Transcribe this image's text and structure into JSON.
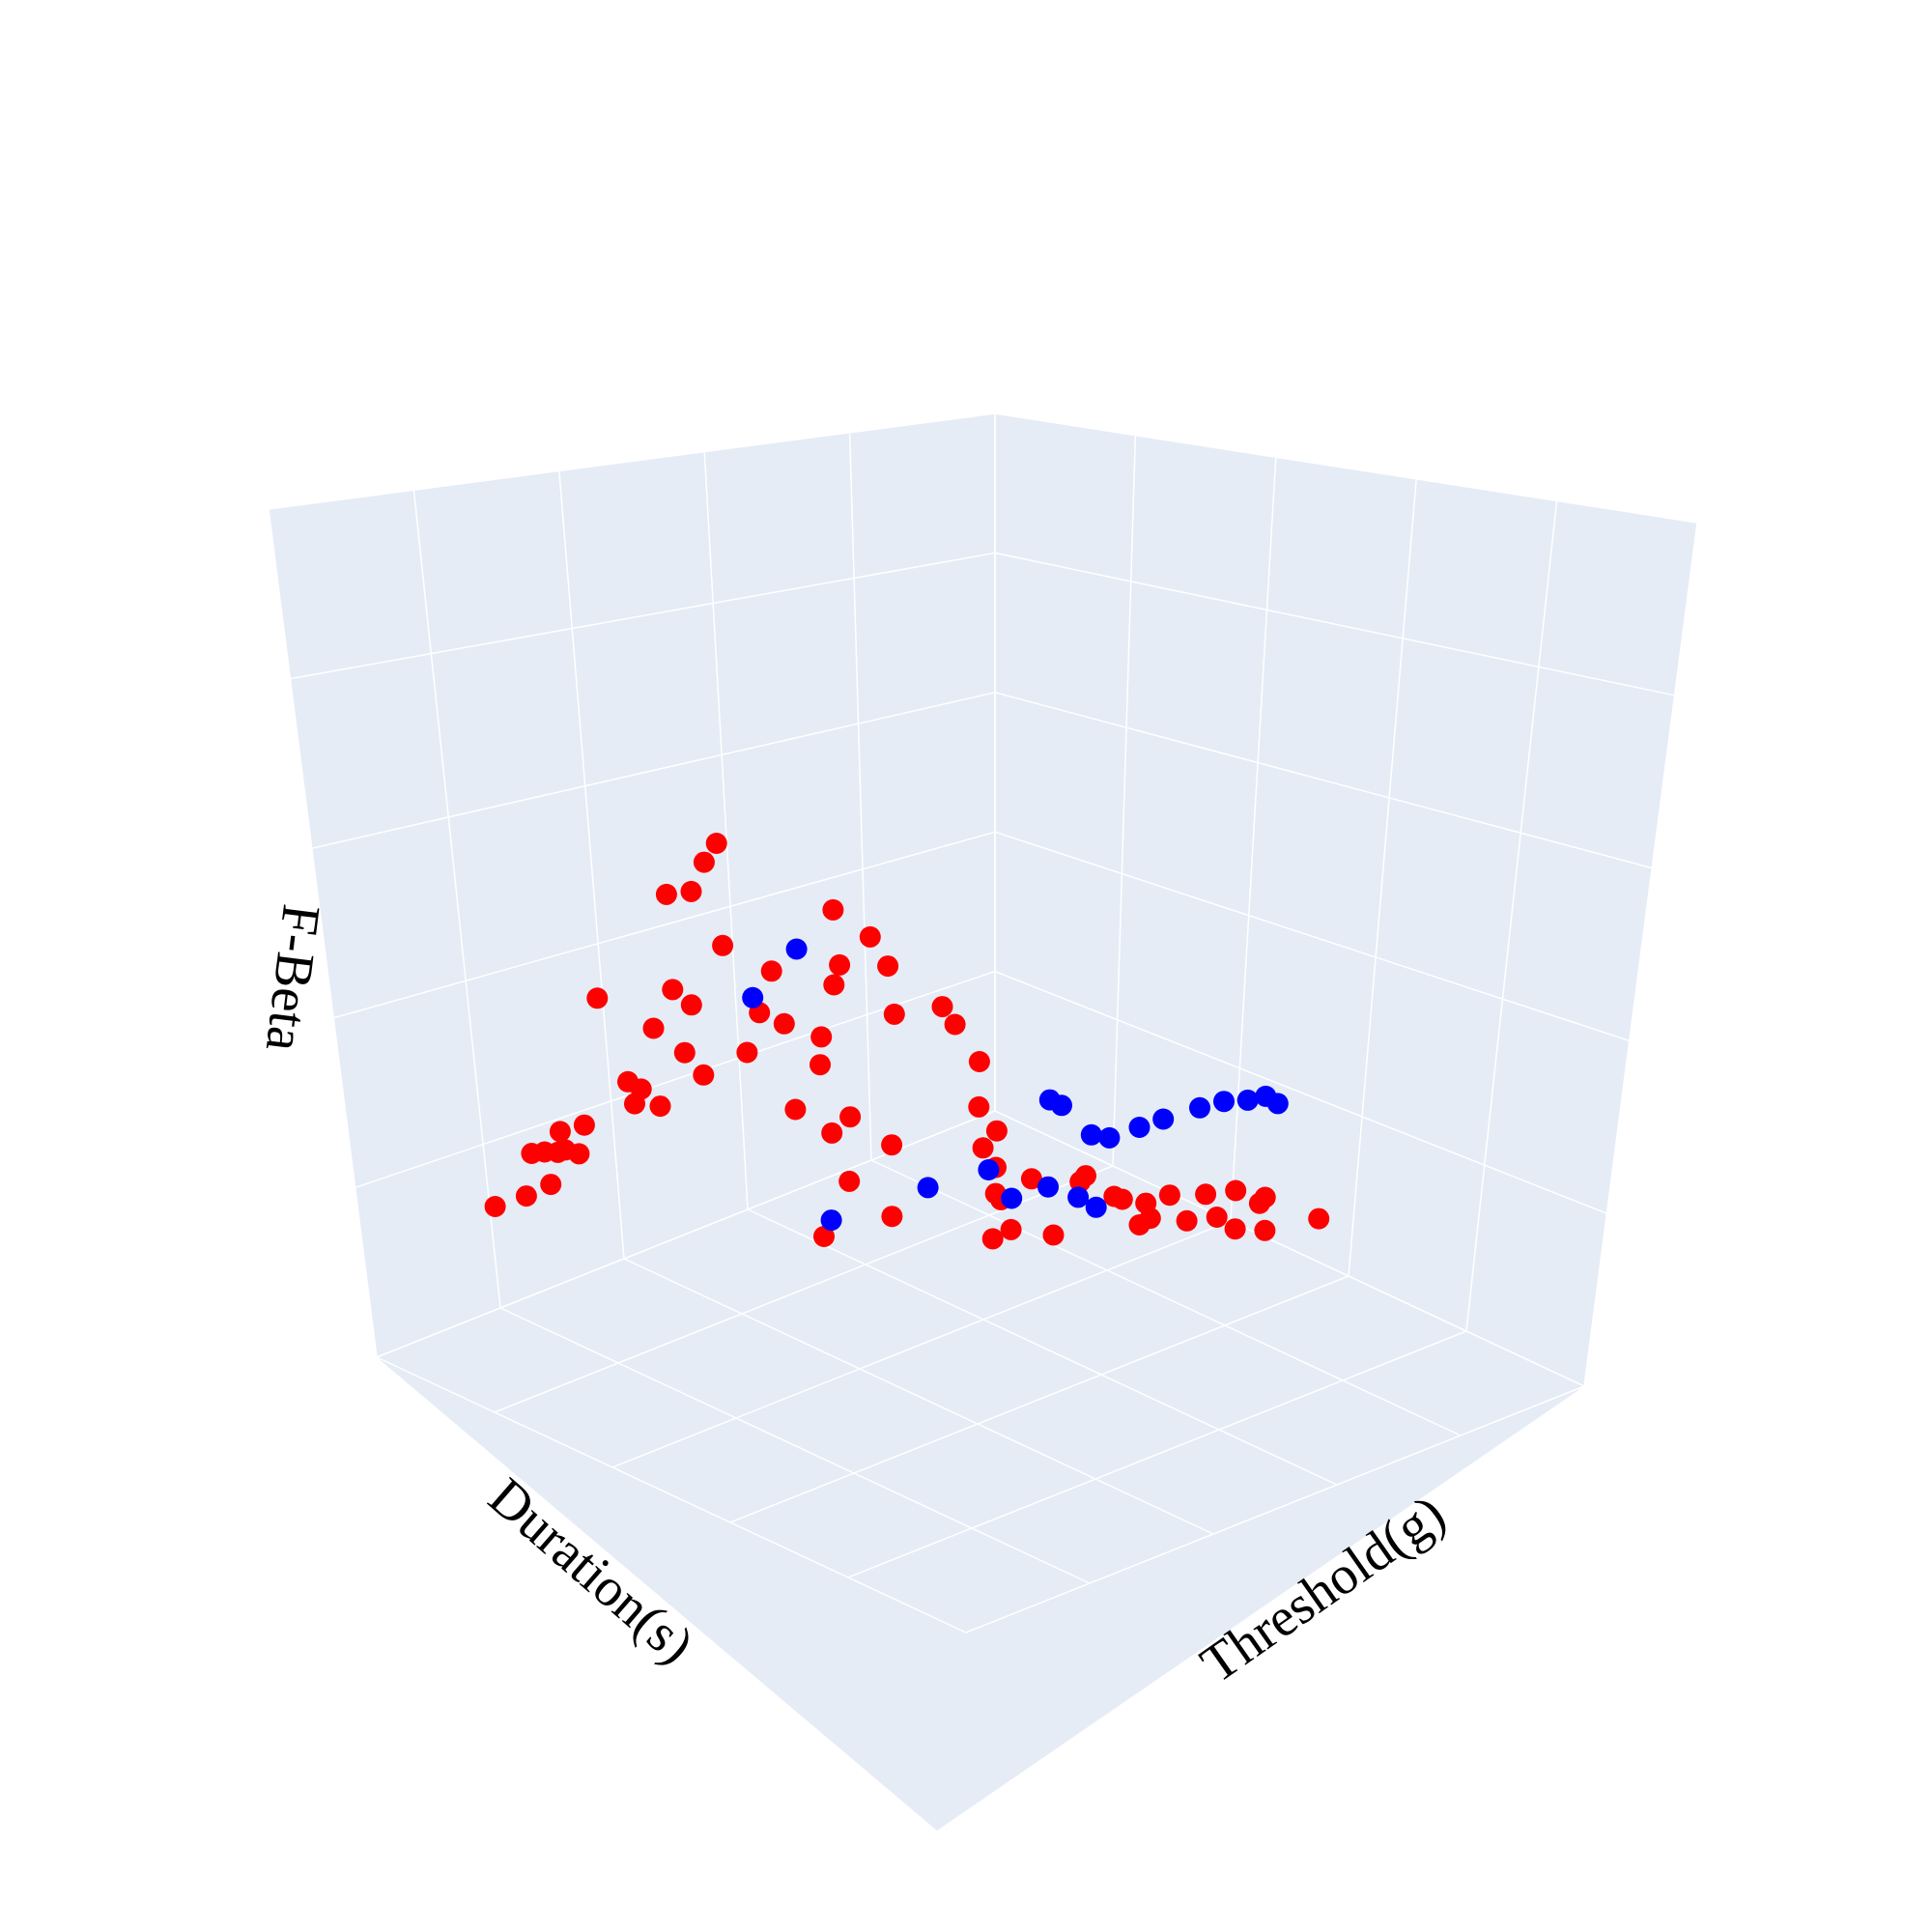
{
  "chart_data": {
    "type": "scatter",
    "title": "",
    "xlabel": "Duration(s)",
    "ylabel": "Threshold(g)",
    "zlabel": "F-Beta",
    "tick_labels_visible": false,
    "grid": true,
    "legend": "none",
    "colors": {
      "pane": "#e5ecf6",
      "grid": "#ffffff",
      "red": "#ff0000",
      "blue": "#0000ff",
      "background": "#ffffff"
    },
    "xlim": [
      0,
      1
    ],
    "ylim": [
      0,
      1
    ],
    "zlim": [
      0,
      1
    ],
    "series": [
      {
        "color": "#ff0000",
        "points": [
          [
            0.02,
            0.18,
            0.28
          ],
          [
            0.08,
            0.17,
            0.27
          ],
          [
            0.11,
            0.18,
            0.28
          ],
          [
            0.06,
            0.2,
            0.35
          ],
          [
            0.1,
            0.18,
            0.33
          ],
          [
            0.15,
            0.15,
            0.3
          ],
          [
            0.2,
            0.11,
            0.27
          ],
          [
            0.23,
            0.07,
            0.27
          ],
          [
            0.27,
            0.06,
            0.22
          ],
          [
            0.29,
            0.07,
            0.44
          ],
          [
            0.25,
            0.09,
            0.28
          ],
          [
            0.33,
            0.08,
            0.31
          ],
          [
            0.36,
            0.06,
            0.26
          ],
          [
            0.38,
            0.05,
            0.27
          ],
          [
            0.43,
            0.03,
            0.22
          ],
          [
            0.49,
            0.02,
            0.34
          ],
          [
            0.46,
            0.04,
            0.29
          ],
          [
            0.5,
            0.03,
            0.24
          ],
          [
            0.4,
            0.05,
            0.35
          ],
          [
            0.45,
            0.03,
            0.38
          ],
          [
            0.44,
            0.03,
            0.52
          ],
          [
            0.48,
            0.03,
            0.51
          ],
          [
            0.52,
            0.01,
            0.53
          ],
          [
            0.54,
            0.01,
            0.55
          ],
          [
            0.58,
            0.02,
            0.24
          ],
          [
            0.55,
            0.01,
            0.4
          ],
          [
            0.6,
            0.02,
            0.29
          ],
          [
            0.61,
            0.03,
            0.35
          ],
          [
            0.64,
            0.02,
            0.26
          ],
          [
            0.66,
            0.06,
            0.21
          ],
          [
            0.62,
            0.06,
            0.16
          ],
          [
            0.66,
            0.08,
            0.12
          ],
          [
            0.68,
            0.09,
            0.14
          ],
          [
            0.65,
            0.12,
            0.07
          ],
          [
            0.59,
            0.14,
            0.02
          ],
          [
            0.7,
            0.14,
            0.01
          ],
          [
            0.69,
            0.15,
            0.12
          ],
          [
            0.7,
            0.02,
            0.22
          ],
          [
            0.72,
            0.03,
            0.32
          ],
          [
            0.7,
            0.04,
            0.41
          ],
          [
            0.73,
            0.01,
            0.28
          ],
          [
            0.76,
            0.04,
            0.35
          ],
          [
            0.76,
            0.07,
            0.32
          ],
          [
            0.78,
            0.06,
            0.24
          ],
          [
            0.81,
            0.11,
            0.26
          ],
          [
            0.84,
            0.1,
            0.22
          ],
          [
            0.87,
            0.11,
            0.16
          ],
          [
            0.85,
            0.13,
            0.11
          ],
          [
            0.86,
            0.15,
            0.08
          ],
          [
            0.83,
            0.18,
            0.05
          ],
          [
            0.79,
            0.2,
            0.1
          ],
          [
            0.82,
            0.19,
            0.02
          ],
          [
            0.8,
            0.22,
            0.03
          ],
          [
            0.84,
            0.23,
            0.05
          ],
          [
            0.89,
            0.26,
            0.04
          ],
          [
            0.88,
            0.28,
            0.06
          ],
          [
            0.92,
            0.34,
            0.03
          ],
          [
            0.93,
            0.37,
            0.05
          ],
          [
            0.95,
            0.41,
            0.06
          ],
          [
            0.97,
            0.44,
            0.07
          ],
          [
            0.98,
            0.47,
            0.06
          ],
          [
            0.97,
            0.49,
            0.08
          ],
          [
            0.99,
            0.56,
            0.07
          ],
          [
            0.96,
            0.5,
            0.04
          ],
          [
            0.95,
            0.46,
            0.03
          ],
          [
            0.93,
            0.45,
            0.05
          ],
          [
            0.91,
            0.42,
            0.04
          ],
          [
            0.87,
            0.4,
            0.05
          ],
          [
            0.84,
            0.37,
            0.08
          ],
          [
            0.78,
            0.33,
            0.03
          ],
          [
            0.74,
            0.3,
            0.04
          ],
          [
            0.72,
            0.29,
            0.03
          ],
          [
            0.9,
            0.35,
            0.01
          ],
          [
            0.92,
            0.3,
            0.02
          ]
        ]
      },
      {
        "color": "#0000ff",
        "points": [
          [
            0.64,
            0.1,
            0.01
          ],
          [
            0.66,
            0.02,
            0.36
          ],
          [
            0.57,
            0.04,
            0.33
          ],
          [
            0.72,
            0.18,
            0.06
          ],
          [
            0.78,
            0.22,
            0.08
          ],
          [
            0.76,
            0.28,
            0.07
          ],
          [
            0.8,
            0.3,
            0.08
          ],
          [
            0.82,
            0.33,
            0.07
          ],
          [
            0.83,
            0.35,
            0.06
          ],
          [
            0.88,
            0.32,
            0.13
          ],
          [
            0.9,
            0.35,
            0.15
          ],
          [
            0.91,
            0.38,
            0.17
          ],
          [
            0.95,
            0.4,
            0.18
          ],
          [
            0.97,
            0.42,
            0.19
          ],
          [
            0.98,
            0.45,
            0.2
          ],
          [
            0.99,
            0.47,
            0.21
          ],
          [
            1.0,
            0.48,
            0.2
          ],
          [
            0.86,
            0.26,
            0.16
          ],
          [
            0.87,
            0.3,
            0.13
          ],
          [
            0.86,
            0.24,
            0.16
          ]
        ]
      }
    ]
  }
}
